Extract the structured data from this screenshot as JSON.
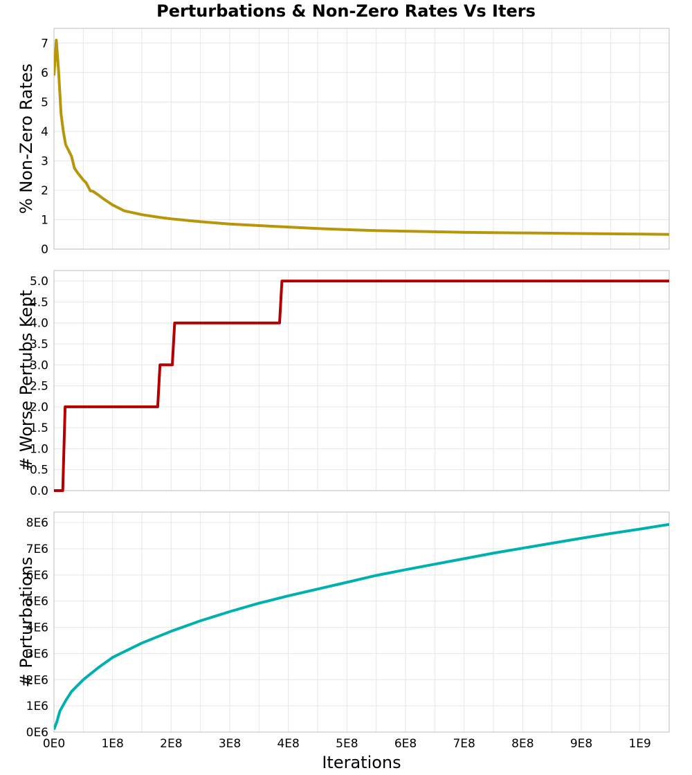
{
  "title": "Perturbations & Non-Zero Rates Vs Iters",
  "chart_data": [
    {
      "type": "line",
      "ylabel": "% Non-Zero Rates",
      "color": "#b8960b",
      "xlim": [
        0,
        1050000000
      ],
      "ylim": [
        0,
        7.5
      ],
      "yticks": [
        0,
        1,
        2,
        3,
        4,
        5,
        6,
        7
      ],
      "ytick_labels": [
        "0",
        "1",
        "2",
        "3",
        "4",
        "5",
        "6",
        "7"
      ],
      "grid": true,
      "x": [
        0,
        4000000,
        8000000,
        12000000,
        16000000,
        20000000,
        25000000,
        30000000,
        35000000,
        40000000,
        50000000,
        55000000,
        62000000,
        66000000,
        75000000,
        85000000,
        100000000,
        120000000,
        150000000,
        180000000,
        200000000,
        230000000,
        250000000,
        300000000,
        350000000,
        400000000,
        450000000,
        500000000,
        550000000,
        600000000,
        650000000,
        700000000,
        750000000,
        800000000,
        850000000,
        900000000,
        950000000,
        1000000000,
        1050000000
      ],
      "y": [
        5.9,
        7.1,
        6.0,
        4.6,
        4.0,
        3.55,
        3.35,
        3.15,
        2.75,
        2.6,
        2.35,
        2.25,
        1.98,
        1.97,
        1.85,
        1.7,
        1.5,
        1.3,
        1.17,
        1.08,
        1.03,
        0.97,
        0.93,
        0.85,
        0.8,
        0.75,
        0.7,
        0.66,
        0.63,
        0.61,
        0.59,
        0.57,
        0.56,
        0.55,
        0.54,
        0.53,
        0.52,
        0.51,
        0.5
      ]
    },
    {
      "type": "line",
      "ylabel": "# Worse Pertubs Kept",
      "color": "#b30000",
      "xlim": [
        0,
        1050000000
      ],
      "ylim": [
        0,
        5.25
      ],
      "yticks": [
        0,
        0.5,
        1,
        1.5,
        2,
        2.5,
        3,
        3.5,
        4,
        4.5,
        5
      ],
      "ytick_labels": [
        "0.0",
        "0.5",
        "1.0",
        "1.5",
        "2.0",
        "2.5",
        "3.0",
        "3.5",
        "4.0",
        "4.5",
        "5.0"
      ],
      "grid": true,
      "x": [
        0,
        15000000,
        19000000,
        177000000,
        181000000,
        202000000,
        206000000,
        385000000,
        389000000,
        1050000000
      ],
      "y": [
        0,
        0,
        2,
        2,
        3,
        3,
        4,
        4,
        5,
        5
      ]
    },
    {
      "type": "line",
      "ylabel": "# Perturbations",
      "xlabel": "Iterations",
      "color": "#00b0b0",
      "xlim": [
        0,
        1050000000
      ],
      "ylim": [
        0,
        8400000
      ],
      "yticks": [
        0,
        1000000,
        2000000,
        3000000,
        4000000,
        5000000,
        6000000,
        7000000,
        8000000
      ],
      "ytick_labels": [
        "0E6",
        "1E6",
        "2E6",
        "3E6",
        "4E6",
        "5E6",
        "6E6",
        "7E6",
        "8E6"
      ],
      "xticks": [
        0,
        100000000,
        200000000,
        300000000,
        400000000,
        500000000,
        600000000,
        700000000,
        800000000,
        900000000,
        1000000000
      ],
      "xtick_labels": [
        "0E0",
        "1E8",
        "2E8",
        "3E8",
        "4E8",
        "5E8",
        "6E8",
        "7E8",
        "8E8",
        "9E8",
        "1E9"
      ],
      "grid": true,
      "x": [
        0,
        5000000,
        10000000,
        20000000,
        30000000,
        50000000,
        75000000,
        100000000,
        150000000,
        200000000,
        250000000,
        300000000,
        350000000,
        400000000,
        450000000,
        500000000,
        550000000,
        600000000,
        650000000,
        700000000,
        750000000,
        800000000,
        850000000,
        900000000,
        950000000,
        1000000000,
        1050000000
      ],
      "y": [
        100000,
        400000,
        800000,
        1200000,
        1550000,
        2000000,
        2450000,
        2850000,
        3400000,
        3850000,
        4250000,
        4600000,
        4920000,
        5200000,
        5460000,
        5720000,
        5980000,
        6200000,
        6410000,
        6620000,
        6830000,
        7020000,
        7210000,
        7400000,
        7580000,
        7750000,
        7930000
      ]
    }
  ]
}
